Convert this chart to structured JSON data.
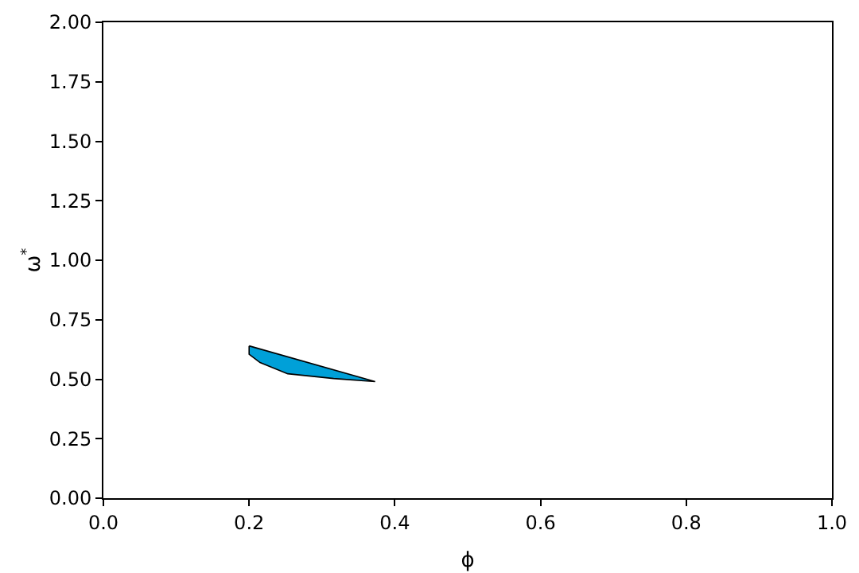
{
  "chart_data": {
    "type": "area",
    "xlabel": "ϕ",
    "ylabel": "ω$^{*}$",
    "series": [
      {
        "color": "#00a0d8",
        "x": [
          0.2,
          0.2,
          0.215,
          0.253,
          0.316,
          0.373,
          0.2
        ],
        "values": [
          0.64,
          0.605,
          0.57,
          0.523,
          0.503,
          0.49,
          0.64
        ]
      }
    ],
    "xlim": [
      0,
      1
    ],
    "xticks": [
      {
        "value": 0,
        "label": "0.0"
      },
      {
        "value": 0.2,
        "label": "0.2"
      },
      {
        "value": 0.4,
        "label": "0.4"
      },
      {
        "value": 0.6,
        "label": "0.6"
      },
      {
        "value": 0.8,
        "label": "0.8"
      },
      {
        "value": 1,
        "label": "1.0"
      }
    ],
    "ylim": [
      0,
      2
    ],
    "yticks": [
      {
        "value": 0,
        "label": "0.00"
      },
      {
        "value": 0.25,
        "label": "0.25"
      },
      {
        "value": 0.5,
        "label": "0.50"
      },
      {
        "value": 0.75,
        "label": "0.75"
      },
      {
        "value": 1,
        "label": "1.00"
      },
      {
        "value": 1.25,
        "label": "1.25"
      },
      {
        "value": 1.5,
        "label": "1.50"
      },
      {
        "value": 1.75,
        "label": "1.75"
      },
      {
        "value": 2,
        "label": "2.00"
      }
    ],
    "grid": false
  }
}
